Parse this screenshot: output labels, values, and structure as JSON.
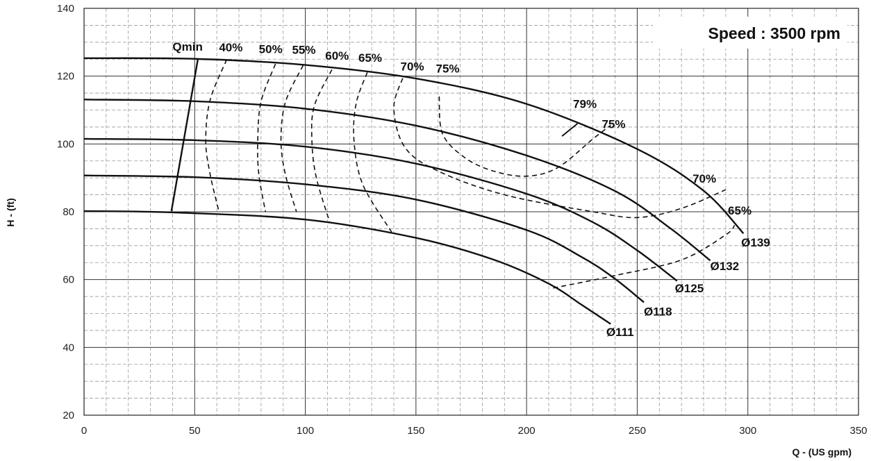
{
  "chart_data": {
    "type": "line",
    "xlabel": "Q - (US gpm)",
    "ylabel": "H - (ft)",
    "xlim": [
      0,
      350
    ],
    "ylim": [
      20,
      140
    ],
    "x_major_step": 50,
    "y_major_step": 20,
    "x_minor_step": 10,
    "y_minor_step": 5,
    "grid": true,
    "annotation": "Speed : 3500 rpm",
    "series": [
      {
        "name": "Ø139",
        "style": "solid",
        "points": [
          [
            0,
            125.3
          ],
          [
            50,
            125.1
          ],
          [
            100,
            123.3
          ],
          [
            150,
            119.3
          ],
          [
            200,
            111.8
          ],
          [
            250,
            98.5
          ],
          [
            280,
            86.2
          ],
          [
            298,
            73.6
          ]
        ]
      },
      {
        "name": "Ø132",
        "style": "solid",
        "points": [
          [
            0,
            113.1
          ],
          [
            50,
            112.6
          ],
          [
            100,
            110.4
          ],
          [
            150,
            105.4
          ],
          [
            200,
            96.6
          ],
          [
            240,
            86.1
          ],
          [
            265,
            75.1
          ],
          [
            283,
            65.6
          ]
        ]
      },
      {
        "name": "Ø125",
        "style": "solid",
        "points": [
          [
            0,
            101.5
          ],
          [
            50,
            101.1
          ],
          [
            100,
            99.2
          ],
          [
            150,
            94.2
          ],
          [
            200,
            85.3
          ],
          [
            230,
            76.9
          ],
          [
            250,
            68.6
          ],
          [
            268,
            59.6
          ]
        ]
      },
      {
        "name": "Ø118",
        "style": "solid",
        "points": [
          [
            0,
            90.7
          ],
          [
            50,
            90.2
          ],
          [
            100,
            88.1
          ],
          [
            150,
            83.6
          ],
          [
            200,
            74.6
          ],
          [
            225,
            66.6
          ],
          [
            240,
            60.2
          ],
          [
            253,
            53.3
          ]
        ]
      },
      {
        "name": "Ø111",
        "style": "solid",
        "points": [
          [
            0,
            80.2
          ],
          [
            40,
            79.8
          ],
          [
            100,
            77.7
          ],
          [
            150,
            72.3
          ],
          [
            185,
            65.9
          ],
          [
            210,
            58.8
          ],
          [
            225,
            52.5
          ],
          [
            238,
            46.9
          ]
        ]
      },
      {
        "name": "Qmin",
        "style": "solid",
        "points": [
          [
            39.5,
            80.2
          ],
          [
            51.5,
            125.2
          ]
        ]
      },
      {
        "name": "40%",
        "style": "dashed",
        "points": [
          [
            64.5,
            124.9
          ],
          [
            57,
            113
          ],
          [
            55,
            101
          ],
          [
            57,
            91
          ],
          [
            61,
            80
          ]
        ]
      },
      {
        "name": "50%",
        "style": "dashed",
        "points": [
          [
            86.5,
            123.6
          ],
          [
            80,
            112.5
          ],
          [
            78.5,
            101
          ],
          [
            79,
            91
          ],
          [
            82,
            80
          ]
        ]
      },
      {
        "name": "55%",
        "style": "dashed",
        "points": [
          [
            99,
            123.2
          ],
          [
            91,
            112.3
          ],
          [
            89,
            101
          ],
          [
            91,
            91
          ],
          [
            96,
            80
          ]
        ]
      },
      {
        "name": "60%",
        "style": "dashed",
        "points": [
          [
            112,
            121.9
          ],
          [
            104,
            111.1
          ],
          [
            103,
            100.6
          ],
          [
            105,
            90
          ],
          [
            111,
            77
          ]
        ]
      },
      {
        "name": "65%",
        "style": "dashed",
        "points": [
          [
            128,
            121.1
          ],
          [
            123,
            112
          ],
          [
            122,
            101
          ],
          [
            126,
            88
          ],
          [
            139,
            74
          ]
        ]
      },
      {
        "name": "70%",
        "style": "dashed",
        "points": [
          [
            144,
            119.4
          ],
          [
            140,
            110.5
          ],
          [
            145,
            99
          ],
          [
            160,
            92
          ],
          [
            190,
            85
          ],
          [
            230,
            80
          ],
          [
            250,
            78.3
          ],
          [
            270,
            81
          ],
          [
            290,
            86.5
          ]
        ]
      },
      {
        "name": "75%",
        "style": "dashed",
        "points": [
          [
            160.5,
            114
          ],
          [
            162,
            103
          ],
          [
            172,
            96
          ],
          [
            185,
            92
          ],
          [
            200,
            90.5
          ],
          [
            214,
            93
          ],
          [
            230,
            101.5
          ],
          [
            238,
            105.5
          ]
        ]
      },
      {
        "name": "65%",
        "style": "dashed",
        "points": [
          [
            212,
            57.5
          ],
          [
            240,
            61.2
          ],
          [
            270,
            65.8
          ],
          [
            290,
            73.2
          ],
          [
            294,
            76
          ]
        ]
      }
    ],
    "labels": [
      {
        "text": "Qmin",
        "x": 40,
        "y": 127.5
      },
      {
        "text": "40%",
        "x": 61,
        "y": 127.3
      },
      {
        "text": "50%",
        "x": 79,
        "y": 126.8
      },
      {
        "text": "55%",
        "x": 94,
        "y": 126.6
      },
      {
        "text": "60%",
        "x": 109,
        "y": 124.8
      },
      {
        "text": "65%",
        "x": 124,
        "y": 124.2
      },
      {
        "text": "70%",
        "x": 143,
        "y": 121.7
      },
      {
        "text": "75%",
        "x": 159,
        "y": 121.1
      },
      {
        "text": "79%",
        "x": 221,
        "y": 110.6
      },
      {
        "text": "75%",
        "x": 234,
        "y": 104.7
      },
      {
        "text": "70%",
        "x": 275,
        "y": 88.6
      },
      {
        "text": "65%",
        "x": 291,
        "y": 79.2
      },
      {
        "text": "Ø139",
        "x": 297,
        "y": 69.8
      },
      {
        "text": "Ø132",
        "x": 283,
        "y": 62.8
      },
      {
        "text": "Ø125",
        "x": 267,
        "y": 56.2
      },
      {
        "text": "Ø118",
        "x": 253,
        "y": 49.4
      },
      {
        "text": "Ø111",
        "x": 236,
        "y": 43.3
      }
    ],
    "tick_79": [
      [
        216,
        102.3
      ],
      [
        223,
        106
      ]
    ]
  }
}
